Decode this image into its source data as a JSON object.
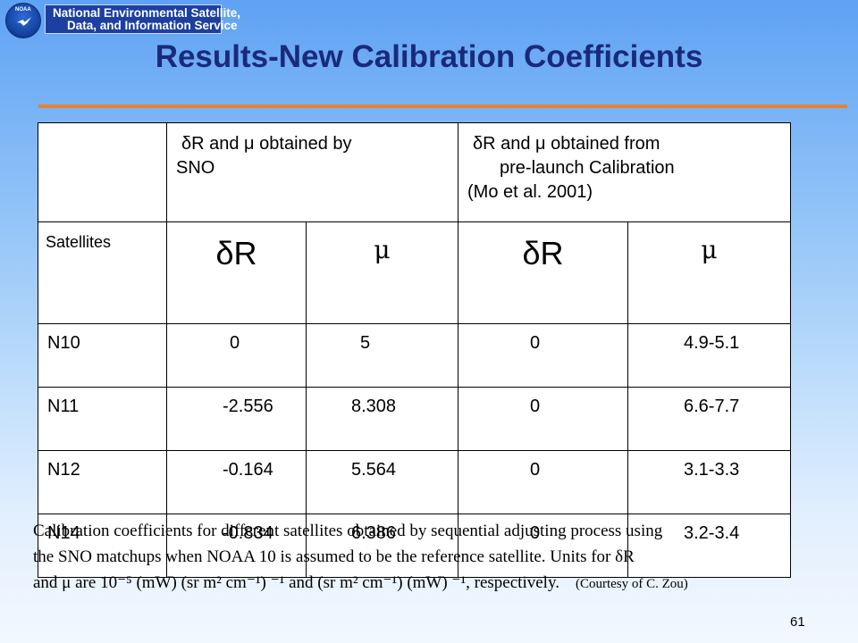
{
  "banner": {
    "logo_text": "NOAA",
    "line1": "National Environmental Satellite,",
    "line2": "Data, and Information Service"
  },
  "title": "Results-New Calibration Coefficients",
  "table": {
    "header_sno_line1": "δR and μ obtained by",
    "header_sno_line2": "SNO",
    "header_pre_line1": "δR and μ obtained from",
    "header_pre_line2": "pre-launch Calibration",
    "header_pre_line3": "(Mo et al. 2001)",
    "satellites_label": "Satellites",
    "symbols": [
      "δR",
      "μ",
      "δR",
      "μ"
    ],
    "rows": [
      {
        "sat": "N10",
        "sno_dr": "0",
        "sno_mu": "5",
        "pre_dr": "0",
        "pre_mu": "4.9-5.1"
      },
      {
        "sat": "N11",
        "sno_dr": "-2.556",
        "sno_mu": "8.308",
        "pre_dr": "0",
        "pre_mu": "6.6-7.7"
      },
      {
        "sat": "N12",
        "sno_dr": "-0.164",
        "sno_mu": "5.564",
        "pre_dr": "0",
        "pre_mu": "3.1-3.3"
      },
      {
        "sat": "N14",
        "sno_dr": "-0.834",
        "sno_mu": "6.386",
        "pre_dr": "0",
        "pre_mu": "3.2-3.4"
      }
    ]
  },
  "caption": {
    "line1": "Calibration coefficients for different satellites obtained by sequential adjusting process using",
    "line2": "the SNO matchups when NOAA 10 is assumed to be the reference satellite.  Units for δR",
    "line3": "and μ are 10⁻⁵ (mW) (sr m² cm⁻¹) ⁻¹ and (sr m² cm⁻¹) (mW) ⁻¹, respectively.",
    "courtesy": "(Courtesy of C. Zou)"
  },
  "page_number": "61"
}
